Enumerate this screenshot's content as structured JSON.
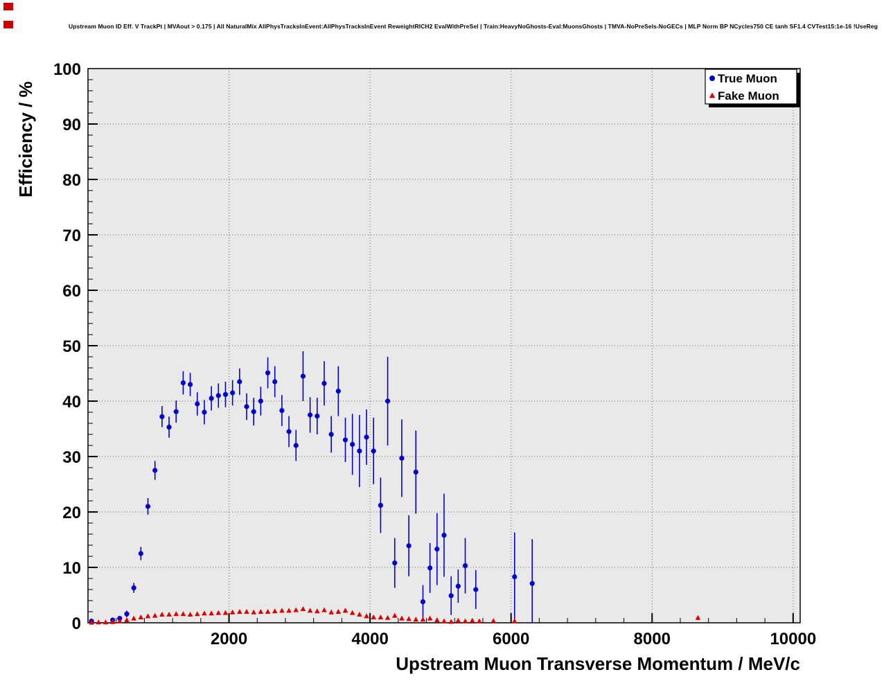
{
  "chart_data": {
    "type": "scatter",
    "title": "Upstream Muon ID Eff. V TrackPt | MVAout > 0.175 | All NaturalMix AllPhysTracksInEvent:AllPhysTracksInEvent ReweightRICH2 EvalWithPreSel | Train:HeavyNoGhosts-Eval:MuonsGhosts | TMVA-NoPreSels-NoGECs | MLP Norm BP NCycles750 CE tanh SF1.4 CVTest15:1e-16 !UseReg",
    "xlabel": "Upstream Muon Transverse Momentum / MeV/c",
    "ylabel": "Efficiency / %",
    "xlim": [
      0,
      10100
    ],
    "ylim": [
      0,
      100
    ],
    "xticks": [
      2000,
      4000,
      6000,
      8000,
      10000
    ],
    "yticks": [
      0,
      10,
      20,
      30,
      40,
      50,
      60,
      70,
      80,
      90,
      100
    ],
    "x_minor_step": 400,
    "y_minor_step": 2,
    "grid": true,
    "legend_position": "top-right",
    "colors": {
      "true_muon": "#0000cc",
      "fake_muon": "#dd0000",
      "plot_bg": "#e9e9e9",
      "grid": "#666666"
    },
    "series": [
      {
        "name": "True Muon",
        "marker": "circle",
        "color": "#0000cc",
        "points": [
          [
            50,
            0.3,
            0.2
          ],
          [
            350,
            0.5,
            0.3
          ],
          [
            450,
            0.8,
            0.4
          ],
          [
            550,
            1.6,
            0.6
          ],
          [
            650,
            6.3,
            0.9
          ],
          [
            750,
            12.5,
            1.2
          ],
          [
            850,
            21.0,
            1.5
          ],
          [
            950,
            27.5,
            1.7
          ],
          [
            1050,
            37.2,
            1.9
          ],
          [
            1150,
            35.3,
            1.9
          ],
          [
            1250,
            38.1,
            2.0
          ],
          [
            1350,
            43.3,
            2.1
          ],
          [
            1450,
            43.0,
            2.1
          ],
          [
            1550,
            39.5,
            2.1
          ],
          [
            1650,
            38.0,
            2.2
          ],
          [
            1750,
            40.5,
            2.2
          ],
          [
            1850,
            41.0,
            2.2
          ],
          [
            1950,
            41.2,
            2.3
          ],
          [
            2050,
            41.5,
            2.3
          ],
          [
            2150,
            43.5,
            2.4
          ],
          [
            2250,
            39.0,
            2.4
          ],
          [
            2350,
            38.1,
            2.5
          ],
          [
            2450,
            40.0,
            2.6
          ],
          [
            2550,
            45.1,
            2.8
          ],
          [
            2650,
            43.5,
            2.8
          ],
          [
            2750,
            38.3,
            2.8
          ],
          [
            2850,
            34.5,
            2.8
          ],
          [
            2950,
            32.0,
            2.8
          ],
          [
            3050,
            44.5,
            4.5
          ],
          [
            3150,
            37.5,
            3.2
          ],
          [
            3250,
            37.3,
            3.3
          ],
          [
            3350,
            43.2,
            4.0
          ],
          [
            3450,
            34.0,
            3.3
          ],
          [
            3550,
            41.8,
            4.5
          ],
          [
            3650,
            33.0,
            4.0
          ],
          [
            3750,
            32.2,
            5.5
          ],
          [
            3850,
            31.0,
            6.5
          ],
          [
            3950,
            33.5,
            5.0
          ],
          [
            4050,
            31.0,
            6.0
          ],
          [
            4150,
            21.2,
            5.0
          ],
          [
            4250,
            40.0,
            8.0
          ],
          [
            4350,
            10.8,
            4.5
          ],
          [
            4450,
            29.7,
            7.0
          ],
          [
            4550,
            13.9,
            5.5
          ],
          [
            4650,
            27.2,
            7.5
          ],
          [
            4750,
            3.8,
            3.0
          ],
          [
            4850,
            9.9,
            4.5
          ],
          [
            4950,
            13.3,
            6.5
          ],
          [
            5050,
            15.8,
            7.5
          ],
          [
            5150,
            4.9,
            3.5
          ],
          [
            5250,
            6.6,
            3.0
          ],
          [
            5350,
            10.3,
            5.0
          ],
          [
            5500,
            6.0,
            3.5
          ],
          [
            6050,
            8.3,
            8.0
          ],
          [
            6300,
            7.1,
            8.0
          ]
        ]
      },
      {
        "name": "Fake Muon",
        "marker": "triangle",
        "color": "#dd0000",
        "points": [
          [
            50,
            0.05,
            0.05
          ],
          [
            150,
            0.1,
            0.05
          ],
          [
            250,
            0.1,
            0.05
          ],
          [
            350,
            0.15,
            0.05
          ],
          [
            450,
            0.3,
            0.1
          ],
          [
            550,
            0.5,
            0.1
          ],
          [
            650,
            0.8,
            0.15
          ],
          [
            750,
            1.0,
            0.15
          ],
          [
            850,
            1.2,
            0.2
          ],
          [
            950,
            1.3,
            0.2
          ],
          [
            1050,
            1.5,
            0.2
          ],
          [
            1150,
            1.5,
            0.2
          ],
          [
            1250,
            1.6,
            0.2
          ],
          [
            1350,
            1.6,
            0.2
          ],
          [
            1450,
            1.5,
            0.2
          ],
          [
            1550,
            1.6,
            0.2
          ],
          [
            1650,
            1.7,
            0.2
          ],
          [
            1750,
            1.7,
            0.2
          ],
          [
            1850,
            1.8,
            0.2
          ],
          [
            1950,
            1.8,
            0.2
          ],
          [
            2050,
            1.9,
            0.2
          ],
          [
            2150,
            2.0,
            0.25
          ],
          [
            2250,
            2.0,
            0.25
          ],
          [
            2350,
            1.9,
            0.25
          ],
          [
            2450,
            2.0,
            0.25
          ],
          [
            2550,
            2.0,
            0.25
          ],
          [
            2650,
            2.1,
            0.25
          ],
          [
            2750,
            2.2,
            0.25
          ],
          [
            2850,
            2.2,
            0.3
          ],
          [
            2950,
            2.3,
            0.3
          ],
          [
            3050,
            2.5,
            0.3
          ],
          [
            3150,
            2.2,
            0.3
          ],
          [
            3250,
            2.1,
            0.3
          ],
          [
            3350,
            2.3,
            0.35
          ],
          [
            3450,
            1.9,
            0.3
          ],
          [
            3550,
            2.0,
            0.35
          ],
          [
            3650,
            2.2,
            0.4
          ],
          [
            3750,
            1.8,
            0.35
          ],
          [
            3850,
            1.5,
            0.3
          ],
          [
            3950,
            1.2,
            0.3
          ],
          [
            4050,
            1.0,
            0.3
          ],
          [
            4150,
            1.0,
            0.3
          ],
          [
            4250,
            0.9,
            0.3
          ],
          [
            4350,
            1.3,
            0.4
          ],
          [
            4450,
            0.8,
            0.3
          ],
          [
            4550,
            0.7,
            0.3
          ],
          [
            4650,
            0.6,
            0.25
          ],
          [
            4750,
            0.6,
            0.25
          ],
          [
            4850,
            0.8,
            0.3
          ],
          [
            4950,
            0.5,
            0.25
          ],
          [
            5050,
            0.3,
            0.2
          ],
          [
            5150,
            0.2,
            0.15
          ],
          [
            5250,
            0.4,
            0.2
          ],
          [
            5350,
            0.3,
            0.2
          ],
          [
            5450,
            0.4,
            0.2
          ],
          [
            5550,
            0.3,
            0.2
          ],
          [
            5750,
            0.35,
            0.2
          ],
          [
            6050,
            0.3,
            0.2
          ],
          [
            8650,
            0.9,
            0.4
          ]
        ]
      }
    ]
  }
}
